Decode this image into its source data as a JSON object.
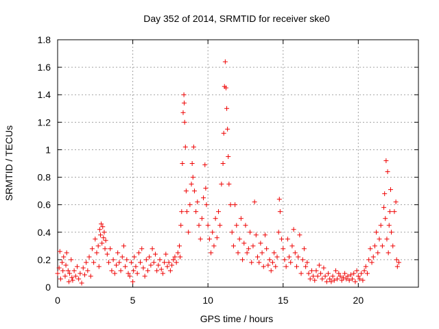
{
  "chart_data": {
    "type": "scatter",
    "title": "Day 352 of 2014, SRMTID for receiver ske0",
    "xlabel": "GPS time / hours",
    "ylabel": "SRMTID / TECUs",
    "xlim": [
      0,
      24
    ],
    "ylim": [
      0,
      1.8
    ],
    "xticks": [
      0,
      5,
      10,
      15,
      20
    ],
    "xtick_labels": [
      "0",
      "5",
      "10",
      "15",
      "20"
    ],
    "yticks": [
      0,
      0.2,
      0.4,
      0.6,
      0.8,
      1.0,
      1.2,
      1.4,
      1.6,
      1.8
    ],
    "ytick_labels": [
      "0",
      "0.2",
      "0.4",
      "0.6",
      "0.8",
      "1",
      "1.2",
      "1.4",
      "1.6",
      "1.8"
    ],
    "grid": true,
    "marker": "+",
    "color": "#ee0000",
    "series": [
      {
        "name": "SRMTID",
        "points": [
          [
            0.0,
            0.1
          ],
          [
            0.1,
            0.14
          ],
          [
            0.15,
            0.26
          ],
          [
            0.2,
            0.06
          ],
          [
            0.3,
            0.18
          ],
          [
            0.35,
            0.12
          ],
          [
            0.4,
            0.22
          ],
          [
            0.5,
            0.08
          ],
          [
            0.55,
            0.16
          ],
          [
            0.6,
            0.25
          ],
          [
            0.7,
            0.12
          ],
          [
            0.75,
            0.04
          ],
          [
            0.8,
            0.1
          ],
          [
            0.9,
            0.2
          ],
          [
            0.95,
            0.07
          ],
          [
            1.0,
            0.05
          ],
          [
            1.1,
            0.12
          ],
          [
            1.2,
            0.08
          ],
          [
            1.3,
            0.15
          ],
          [
            1.4,
            0.06
          ],
          [
            1.5,
            0.1
          ],
          [
            1.6,
            0.03
          ],
          [
            1.7,
            0.14
          ],
          [
            1.8,
            0.09
          ],
          [
            1.9,
            0.18
          ],
          [
            2.0,
            0.12
          ],
          [
            2.1,
            0.22
          ],
          [
            2.2,
            0.08
          ],
          [
            2.3,
            0.28
          ],
          [
            2.4,
            0.18
          ],
          [
            2.5,
            0.35
          ],
          [
            2.6,
            0.25
          ],
          [
            2.7,
            0.3
          ],
          [
            2.75,
            0.15
          ],
          [
            2.8,
            0.42
          ],
          [
            2.85,
            0.38
          ],
          [
            2.9,
            0.46
          ],
          [
            2.95,
            0.32
          ],
          [
            3.0,
            0.44
          ],
          [
            3.05,
            0.36
          ],
          [
            3.1,
            0.4
          ],
          [
            3.15,
            0.28
          ],
          [
            3.2,
            0.34
          ],
          [
            3.3,
            0.24
          ],
          [
            3.4,
            0.18
          ],
          [
            3.5,
            0.28
          ],
          [
            3.6,
            0.12
          ],
          [
            3.7,
            0.2
          ],
          [
            3.8,
            0.1
          ],
          [
            3.9,
            0.16
          ],
          [
            4.0,
            0.25
          ],
          [
            4.1,
            0.18
          ],
          [
            4.2,
            0.12
          ],
          [
            4.3,
            0.22
          ],
          [
            4.4,
            0.3
          ],
          [
            4.5,
            0.15
          ],
          [
            4.6,
            0.2
          ],
          [
            4.7,
            0.1
          ],
          [
            4.8,
            0.08
          ],
          [
            4.9,
            0.18
          ],
          [
            5.0,
            0.04
          ],
          [
            5.05,
            0.12
          ],
          [
            5.1,
            0.22
          ],
          [
            5.2,
            0.15
          ],
          [
            5.3,
            0.1
          ],
          [
            5.4,
            0.25
          ],
          [
            5.5,
            0.18
          ],
          [
            5.6,
            0.28
          ],
          [
            5.7,
            0.14
          ],
          [
            5.8,
            0.08
          ],
          [
            5.9,
            0.2
          ],
          [
            6.0,
            0.12
          ],
          [
            6.1,
            0.22
          ],
          [
            6.2,
            0.16
          ],
          [
            6.3,
            0.28
          ],
          [
            6.4,
            0.18
          ],
          [
            6.5,
            0.24
          ],
          [
            6.6,
            0.12
          ],
          [
            6.7,
            0.16
          ],
          [
            6.8,
            0.2
          ],
          [
            6.9,
            0.13
          ],
          [
            7.0,
            0.1
          ],
          [
            7.1,
            0.18
          ],
          [
            7.2,
            0.24
          ],
          [
            7.3,
            0.15
          ],
          [
            7.4,
            0.18
          ],
          [
            7.5,
            0.12
          ],
          [
            7.6,
            0.16
          ],
          [
            7.7,
            0.2
          ],
          [
            7.8,
            0.22
          ],
          [
            7.9,
            0.18
          ],
          [
            8.0,
            0.25
          ],
          [
            8.1,
            0.3
          ],
          [
            8.15,
            0.22
          ],
          [
            8.2,
            0.45
          ],
          [
            8.25,
            0.55
          ],
          [
            8.3,
            0.9
          ],
          [
            8.35,
            1.27
          ],
          [
            8.4,
            1.4
          ],
          [
            8.42,
            1.34
          ],
          [
            8.45,
            1.2
          ],
          [
            8.5,
            1.02
          ],
          [
            8.55,
            0.7
          ],
          [
            8.6,
            0.55
          ],
          [
            8.7,
            0.4
          ],
          [
            8.8,
            0.6
          ],
          [
            8.9,
            0.75
          ],
          [
            8.95,
            0.9
          ],
          [
            9.0,
            0.8
          ],
          [
            9.05,
            1.02
          ],
          [
            9.1,
            0.7
          ],
          [
            9.2,
            0.55
          ],
          [
            9.3,
            0.62
          ],
          [
            9.4,
            0.45
          ],
          [
            9.5,
            0.35
          ],
          [
            9.6,
            0.5
          ],
          [
            9.7,
            0.65
          ],
          [
            9.8,
            0.89
          ],
          [
            9.85,
            0.72
          ],
          [
            9.9,
            0.6
          ],
          [
            10.0,
            0.45
          ],
          [
            10.1,
            0.35
          ],
          [
            10.2,
            0.25
          ],
          [
            10.3,
            0.4
          ],
          [
            10.4,
            0.3
          ],
          [
            10.5,
            0.5
          ],
          [
            10.6,
            0.36
          ],
          [
            10.7,
            0.55
          ],
          [
            10.8,
            0.45
          ],
          [
            10.9,
            0.75
          ],
          [
            11.0,
            0.9
          ],
          [
            11.05,
            1.12
          ],
          [
            11.1,
            1.46
          ],
          [
            11.15,
            1.64
          ],
          [
            11.2,
            1.45
          ],
          [
            11.25,
            1.3
          ],
          [
            11.3,
            1.15
          ],
          [
            11.35,
            0.95
          ],
          [
            11.4,
            0.75
          ],
          [
            11.5,
            0.6
          ],
          [
            11.6,
            0.4
          ],
          [
            11.7,
            0.3
          ],
          [
            11.8,
            0.6
          ],
          [
            11.9,
            0.45
          ],
          [
            12.0,
            0.25
          ],
          [
            12.1,
            0.35
          ],
          [
            12.2,
            0.5
          ],
          [
            12.3,
            0.2
          ],
          [
            12.4,
            0.32
          ],
          [
            12.5,
            0.45
          ],
          [
            12.6,
            0.25
          ],
          [
            12.7,
            0.28
          ],
          [
            12.8,
            0.4
          ],
          [
            12.9,
            0.18
          ],
          [
            13.0,
            0.3
          ],
          [
            13.1,
            0.62
          ],
          [
            13.2,
            0.38
          ],
          [
            13.3,
            0.22
          ],
          [
            13.4,
            0.18
          ],
          [
            13.5,
            0.32
          ],
          [
            13.6,
            0.25
          ],
          [
            13.7,
            0.15
          ],
          [
            13.8,
            0.38
          ],
          [
            13.9,
            0.28
          ],
          [
            14.0,
            0.16
          ],
          [
            14.1,
            0.2
          ],
          [
            14.2,
            0.12
          ],
          [
            14.3,
            0.18
          ],
          [
            14.4,
            0.25
          ],
          [
            14.5,
            0.15
          ],
          [
            14.6,
            0.22
          ],
          [
            14.7,
            0.4
          ],
          [
            14.75,
            0.64
          ],
          [
            14.8,
            0.55
          ],
          [
            14.9,
            0.35
          ],
          [
            15.0,
            0.28
          ],
          [
            15.1,
            0.2
          ],
          [
            15.2,
            0.15
          ],
          [
            15.3,
            0.35
          ],
          [
            15.4,
            0.22
          ],
          [
            15.5,
            0.18
          ],
          [
            15.6,
            0.3
          ],
          [
            15.7,
            0.42
          ],
          [
            15.8,
            0.25
          ],
          [
            15.9,
            0.15
          ],
          [
            16.0,
            0.22
          ],
          [
            16.1,
            0.38
          ],
          [
            16.2,
            0.1
          ],
          [
            16.3,
            0.2
          ],
          [
            16.4,
            0.28
          ],
          [
            16.5,
            0.15
          ],
          [
            16.6,
            0.18
          ],
          [
            16.7,
            0.1
          ],
          [
            16.8,
            0.06
          ],
          [
            16.9,
            0.12
          ],
          [
            17.0,
            0.08
          ],
          [
            17.1,
            0.05
          ],
          [
            17.2,
            0.12
          ],
          [
            17.3,
            0.08
          ],
          [
            17.4,
            0.16
          ],
          [
            17.5,
            0.1
          ],
          [
            17.6,
            0.06
          ],
          [
            17.7,
            0.14
          ],
          [
            17.8,
            0.08
          ],
          [
            17.9,
            0.04
          ],
          [
            18.0,
            0.1
          ],
          [
            18.1,
            0.06
          ],
          [
            18.2,
            0.04
          ],
          [
            18.3,
            0.08
          ],
          [
            18.4,
            0.05
          ],
          [
            18.5,
            0.12
          ],
          [
            18.6,
            0.06
          ],
          [
            18.7,
            0.1
          ],
          [
            18.8,
            0.08
          ],
          [
            18.9,
            0.05
          ],
          [
            19.0,
            0.07
          ],
          [
            19.1,
            0.1
          ],
          [
            19.2,
            0.06
          ],
          [
            19.3,
            0.08
          ],
          [
            19.4,
            0.05
          ],
          [
            19.5,
            0.09
          ],
          [
            19.6,
            0.06
          ],
          [
            19.7,
            0.1
          ],
          [
            19.8,
            0.04
          ],
          [
            19.9,
            0.12
          ],
          [
            20.0,
            0.08
          ],
          [
            20.1,
            0.06
          ],
          [
            20.2,
            0.1
          ],
          [
            20.3,
            0.05
          ],
          [
            20.4,
            0.12
          ],
          [
            20.5,
            0.15
          ],
          [
            20.6,
            0.1
          ],
          [
            20.7,
            0.2
          ],
          [
            20.8,
            0.28
          ],
          [
            20.9,
            0.18
          ],
          [
            21.0,
            0.22
          ],
          [
            21.1,
            0.3
          ],
          [
            21.2,
            0.4
          ],
          [
            21.3,
            0.25
          ],
          [
            21.4,
            0.35
          ],
          [
            21.5,
            0.45
          ],
          [
            21.6,
            0.3
          ],
          [
            21.7,
            0.58
          ],
          [
            21.75,
            0.68
          ],
          [
            21.8,
            0.5
          ],
          [
            21.9,
            0.35
          ],
          [
            22.0,
            0.25
          ],
          [
            22.05,
            0.45
          ],
          [
            22.1,
            0.55
          ],
          [
            22.15,
            0.71
          ],
          [
            22.2,
            0.4
          ],
          [
            22.3,
            0.3
          ],
          [
            22.4,
            0.55
          ],
          [
            22.5,
            0.62
          ],
          [
            22.55,
            0.2
          ],
          [
            22.6,
            0.15
          ],
          [
            22.7,
            0.18
          ],
          [
            21.85,
            0.92
          ],
          [
            21.95,
            0.84
          ]
        ]
      }
    ]
  }
}
